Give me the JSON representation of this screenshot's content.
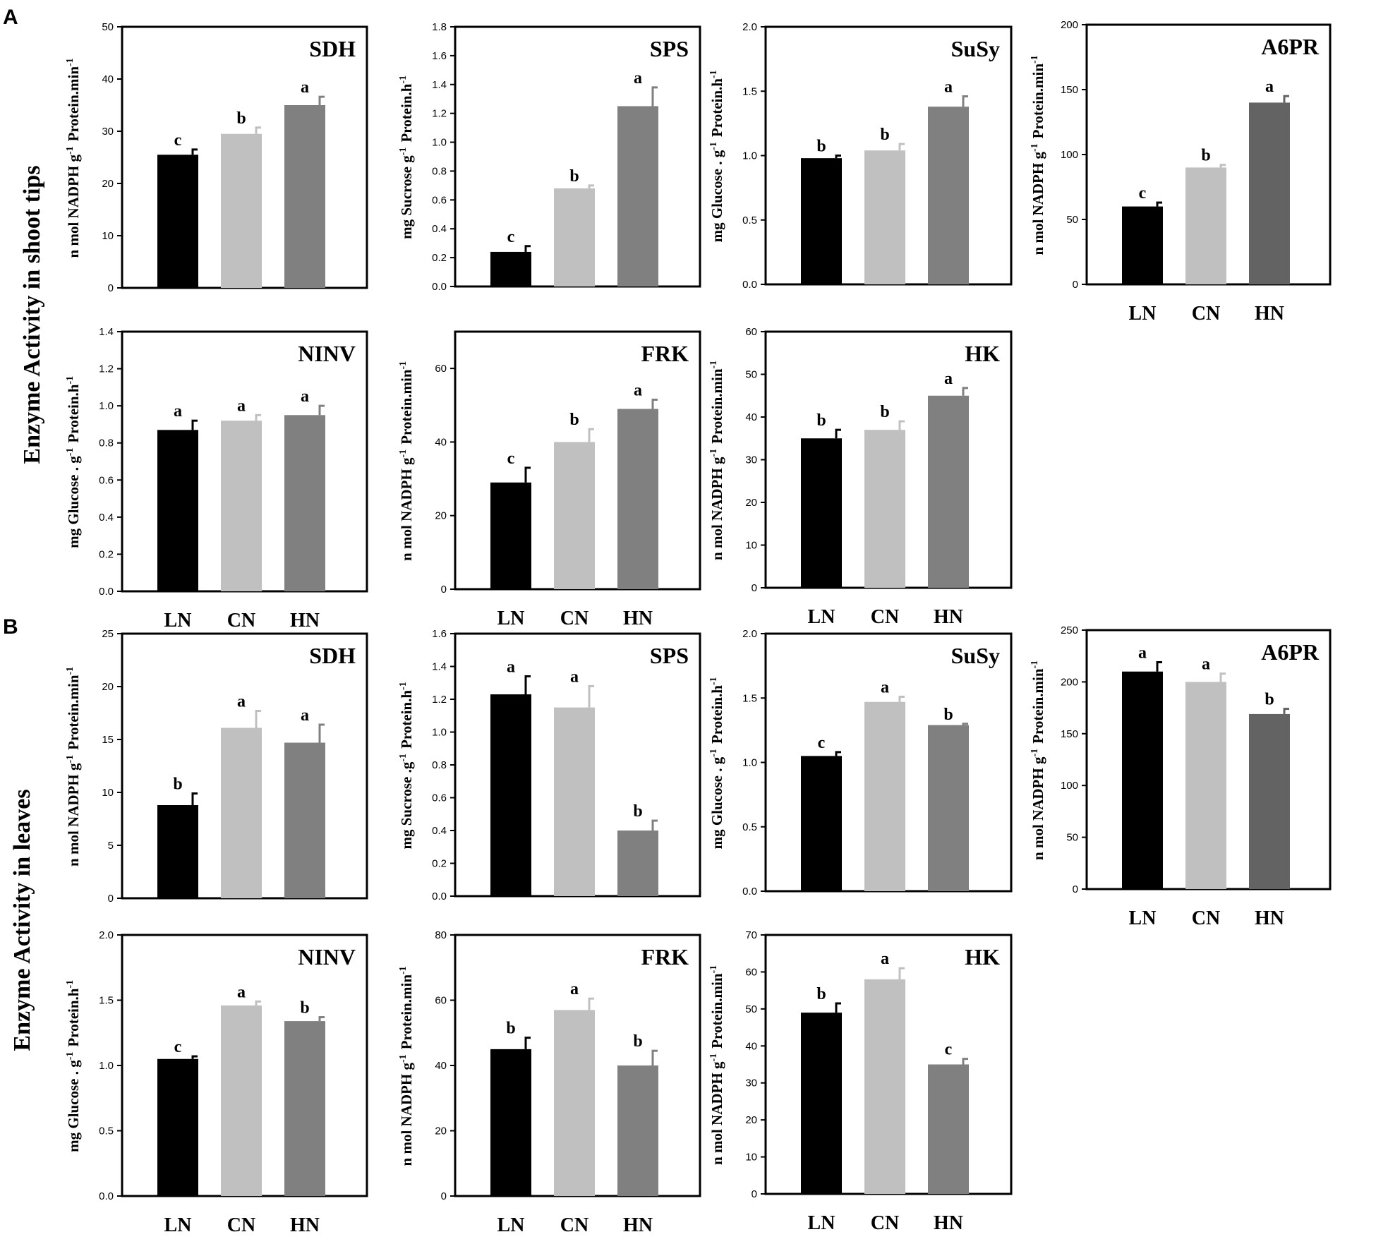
{
  "figure": {
    "panel_A": "A",
    "panel_B": "B",
    "section_A_label": "Enzyme Activity in shoot tips",
    "section_B_label": "Enzyme Activity in leaves"
  },
  "colors": {
    "LN": "#000000",
    "CN": "#c0c0c0",
    "HN": "#808080",
    "HN_A6PR": "#636363"
  },
  "chart_data": [
    {
      "panel": "A",
      "type": "bar",
      "title": "SDH",
      "ylabel": "n mol NADPH g-1 Protein.min-1",
      "categories": [
        "LN",
        "CN",
        "HN"
      ],
      "values": [
        25.5,
        29.5,
        35
      ],
      "errors": [
        1,
        1.2,
        1.6
      ],
      "significance": [
        "c",
        "b",
        "a"
      ],
      "ylim": [
        0,
        50
      ],
      "yticks": [
        0,
        10,
        20,
        30,
        40,
        50
      ],
      "show_x_labels": false
    },
    {
      "panel": "A",
      "type": "bar",
      "title": "SPS",
      "ylabel": "mg Sucrose g-1 Protein.h-1",
      "categories": [
        "LN",
        "CN",
        "HN"
      ],
      "values": [
        0.24,
        0.68,
        1.25
      ],
      "errors": [
        0.04,
        0.02,
        0.13
      ],
      "significance": [
        "c",
        "b",
        "a"
      ],
      "ylim": [
        0,
        1.8
      ],
      "yticks": [
        0,
        0.2,
        0.4,
        0.6,
        0.8,
        1.0,
        1.2,
        1.4,
        1.6,
        1.8
      ],
      "show_x_labels": false
    },
    {
      "panel": "A",
      "type": "bar",
      "title": "SuSy",
      "ylabel": "mg Glucose . g-1 Protein.h-1",
      "categories": [
        "LN",
        "CN",
        "HN"
      ],
      "values": [
        0.98,
        1.04,
        1.38
      ],
      "errors": [
        0.02,
        0.05,
        0.08
      ],
      "significance": [
        "b",
        "b",
        "a"
      ],
      "ylim": [
        0,
        2
      ],
      "yticks": [
        0,
        0.5,
        1.0,
        1.5,
        2.0
      ],
      "show_x_labels": false
    },
    {
      "panel": "A",
      "type": "bar",
      "title": "A6PR",
      "ylabel": "n mol NADPH g-1 Protein.min-1",
      "categories": [
        "LN",
        "CN",
        "HN"
      ],
      "values": [
        60,
        90,
        140
      ],
      "errors": [
        3,
        2,
        5
      ],
      "significance": [
        "c",
        "b",
        "a"
      ],
      "ylim": [
        0,
        200
      ],
      "yticks": [
        0,
        50,
        100,
        150,
        200
      ],
      "show_x_labels": true
    },
    {
      "panel": "A",
      "type": "bar",
      "title": "NINV",
      "ylabel": "mg Glucose . g-1 Protein.h-1",
      "categories": [
        "LN",
        "CN",
        "HN"
      ],
      "values": [
        0.87,
        0.92,
        0.95
      ],
      "errors": [
        0.05,
        0.03,
        0.05
      ],
      "significance": [
        "a",
        "a",
        "a"
      ],
      "ylim": [
        0,
        1.4
      ],
      "yticks": [
        0,
        0.2,
        0.4,
        0.6,
        0.8,
        1.0,
        1.2,
        1.4
      ],
      "show_x_labels": true
    },
    {
      "panel": "A",
      "type": "bar",
      "title": "FRK",
      "ylabel": "n mol NADPH g-1 Protein.min-1",
      "categories": [
        "LN",
        "CN",
        "HN"
      ],
      "values": [
        29,
        40,
        49
      ],
      "errors": [
        4,
        3.5,
        2.5
      ],
      "significance": [
        "c",
        "b",
        "a"
      ],
      "ylim": [
        0,
        70
      ],
      "yticks": [
        0,
        20,
        40,
        60
      ],
      "show_x_labels": true
    },
    {
      "panel": "A",
      "type": "bar",
      "title": "HK",
      "ylabel": "n mol NADPH g-1 Protein.min-1",
      "categories": [
        "LN",
        "CN",
        "HN"
      ],
      "values": [
        35,
        37,
        45
      ],
      "errors": [
        2,
        2,
        1.8
      ],
      "significance": [
        "b",
        "b",
        "a"
      ],
      "ylim": [
        0,
        60
      ],
      "yticks": [
        0,
        10,
        20,
        30,
        40,
        50,
        60
      ],
      "show_x_labels": true
    },
    {
      "panel": "B",
      "type": "bar",
      "title": "SDH",
      "ylabel": "n mol NADPH g-1 Protein.min-1",
      "categories": [
        "LN",
        "CN",
        "HN"
      ],
      "values": [
        8.8,
        16.1,
        14.7
      ],
      "errors": [
        1.1,
        1.6,
        1.7
      ],
      "significance": [
        "b",
        "a",
        "a"
      ],
      "ylim": [
        0,
        25
      ],
      "yticks": [
        0,
        5,
        10,
        15,
        20,
        25
      ],
      "show_x_labels": false
    },
    {
      "panel": "B",
      "type": "bar",
      "title": "SPS",
      "ylabel": "mg Sucrose .g-1 Protein.h-1",
      "categories": [
        "LN",
        "CN",
        "HN"
      ],
      "values": [
        1.23,
        1.15,
        0.4
      ],
      "errors": [
        0.11,
        0.13,
        0.06
      ],
      "significance": [
        "a",
        "a",
        "b"
      ],
      "ylim": [
        0,
        1.6
      ],
      "yticks": [
        0,
        0.2,
        0.4,
        0.6,
        0.8,
        1.0,
        1.2,
        1.4,
        1.6
      ],
      "show_x_labels": false
    },
    {
      "panel": "B",
      "type": "bar",
      "title": "SuSy",
      "ylabel": "mg Glucose . g-1 Protein.h-1",
      "categories": [
        "LN",
        "CN",
        "HN"
      ],
      "values": [
        1.05,
        1.47,
        1.29
      ],
      "errors": [
        0.03,
        0.04,
        0.01
      ],
      "significance": [
        "c",
        "a",
        "b"
      ],
      "ylim": [
        0,
        2
      ],
      "yticks": [
        0,
        0.5,
        1.0,
        1.5,
        2.0
      ],
      "show_x_labels": false
    },
    {
      "panel": "B",
      "type": "bar",
      "title": "A6PR",
      "ylabel": "n mol NADPH g-1 Protein.min-1",
      "categories": [
        "LN",
        "CN",
        "HN"
      ],
      "values": [
        210,
        200,
        169
      ],
      "errors": [
        9,
        8,
        5
      ],
      "significance": [
        "a",
        "a",
        "b"
      ],
      "ylim": [
        0,
        250
      ],
      "yticks": [
        0,
        50,
        100,
        150,
        200,
        250
      ],
      "show_x_labels": true
    },
    {
      "panel": "B",
      "type": "bar",
      "title": "NINV",
      "ylabel": "mg Glucose . g-1 Protein.h-1",
      "categories": [
        "LN",
        "CN",
        "HN"
      ],
      "values": [
        1.05,
        1.46,
        1.34
      ],
      "errors": [
        0.02,
        0.03,
        0.03
      ],
      "significance": [
        "c",
        "a",
        "b"
      ],
      "ylim": [
        0,
        2
      ],
      "yticks": [
        0,
        0.5,
        1.0,
        1.5,
        2.0
      ],
      "show_x_labels": true
    },
    {
      "panel": "B",
      "type": "bar",
      "title": "FRK",
      "ylabel": "n mol NADPH g-1 Protein.min-1",
      "categories": [
        "LN",
        "CN",
        "HN"
      ],
      "values": [
        45,
        57,
        40
      ],
      "errors": [
        3.5,
        3.5,
        4.5
      ],
      "significance": [
        "b",
        "a",
        "b"
      ],
      "ylim": [
        0,
        80
      ],
      "yticks": [
        0,
        20,
        40,
        60,
        80
      ],
      "show_x_labels": true
    },
    {
      "panel": "B",
      "type": "bar",
      "title": "HK",
      "ylabel": "n mol NADPH g-1 Protein.min-1",
      "categories": [
        "LN",
        "CN",
        "HN"
      ],
      "values": [
        49,
        58,
        35
      ],
      "errors": [
        2.5,
        3,
        1.5
      ],
      "significance": [
        "b",
        "a",
        "c"
      ],
      "ylim": [
        0,
        70
      ],
      "yticks": [
        0,
        10,
        20,
        30,
        40,
        50,
        60,
        70
      ],
      "show_x_labels": true
    }
  ]
}
